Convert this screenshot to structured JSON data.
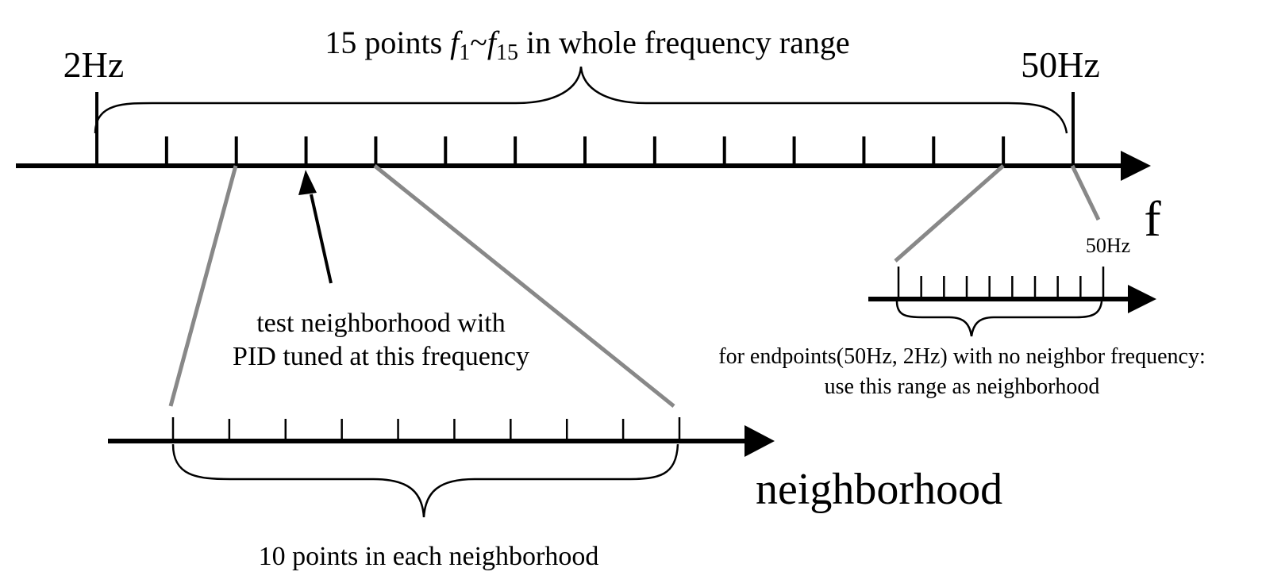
{
  "labels": {
    "title_prefix": "15 points ",
    "title_f": "f",
    "title_sub1": "1",
    "title_tilde": "~",
    "title_sub15": "15",
    "title_suffix": " in whole frequency range",
    "start_freq": "2Hz",
    "end_freq": "50Hz",
    "axis_label": "f",
    "annotation_line1": "test neighborhood with",
    "annotation_line2": "PID tuned at this frequency",
    "neighborhood_label": "neighborhood",
    "neighborhood_count": "10 points in each neighborhood",
    "endpoint_freq": "50Hz",
    "endpoint_note_line1": "for endpoints(50Hz, 2Hz) with no neighbor frequency:",
    "endpoint_note_line2": "use this range as neighborhood"
  },
  "main_axis": {
    "point_count": 15
  },
  "neighborhood_axis": {
    "point_count": 10
  },
  "endpoint_axis": {
    "point_count": 10
  },
  "colors": {
    "ink": "#000000",
    "zoom_line": "#888888",
    "background": "#ffffff"
  }
}
